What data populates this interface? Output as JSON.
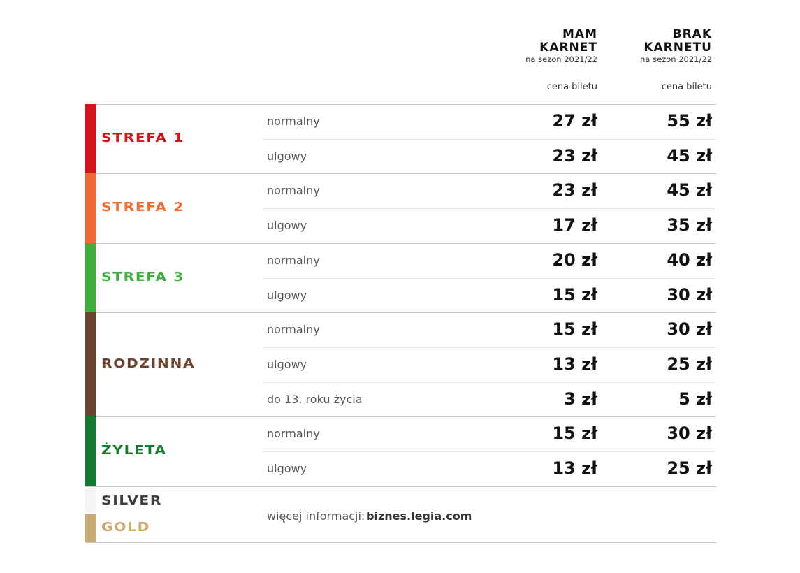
{
  "header": {
    "columns": [
      {
        "title_lines": [
          "MAM",
          "KARNET"
        ],
        "subtitle": "na sezon 2021/22",
        "label": "cena biletu"
      },
      {
        "title_lines": [
          "BRAK",
          "KARNETU"
        ],
        "subtitle": "na sezon 2021/22",
        "label": "cena biletu"
      }
    ]
  },
  "zones": [
    {
      "name": "STREFA 1",
      "color": "#d0161b",
      "rows": [
        [
          "normalny",
          "27 zł",
          "55 zł"
        ],
        [
          "ulgowy",
          "23 zł",
          "45 zł"
        ]
      ]
    },
    {
      "name": "STREFA 2",
      "color": "#ef6b34",
      "rows": [
        [
          "normalny",
          "23 zł",
          "45 zł"
        ],
        [
          "ulgowy",
          "17 zł",
          "35 zł"
        ]
      ]
    },
    {
      "name": "STREFA 3",
      "color": "#3fae3e",
      "rows": [
        [
          "normalny",
          "20 zł",
          "40 zł"
        ],
        [
          "ulgowy",
          "15 zł",
          "30 zł"
        ]
      ]
    },
    {
      "name": "RODZINNA",
      "color": "#6b4431",
      "rows": [
        [
          "normalny",
          "15 zł",
          "30 zł"
        ],
        [
          "ulgowy",
          "13 zł",
          "25 zł"
        ],
        [
          "do 13. roku życia",
          "3 zł",
          "5 zł"
        ]
      ]
    },
    {
      "name": "ŻYLETA",
      "color": "#137a30",
      "rows": [
        [
          "normalny",
          "15 zł",
          "30 zł"
        ],
        [
          "ulgowy",
          "13 zł",
          "25 zł"
        ]
      ]
    }
  ],
  "footer": {
    "silver": {
      "name": "SILVER",
      "color": "#f4f4f4",
      "text_color": "#3d3d3d"
    },
    "gold": {
      "name": "GOLD",
      "color": "#c9aa72",
      "text_color": "#c9aa72"
    },
    "info_prefix": "więcej informacji:",
    "info_link": "biznes.legia.com"
  }
}
